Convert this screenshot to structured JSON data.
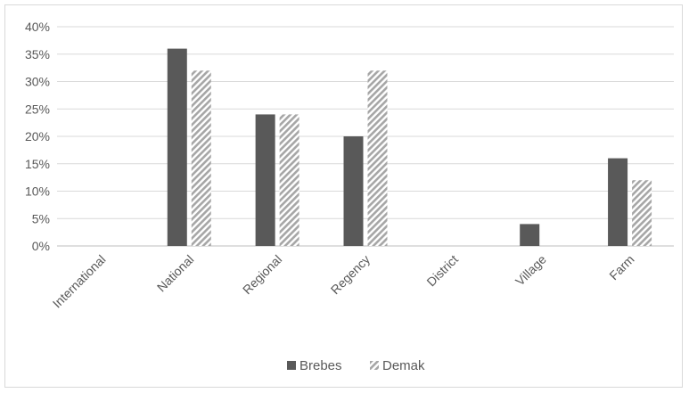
{
  "chart_data": {
    "type": "bar",
    "categories": [
      "International",
      "National",
      "Regional",
      "Regency",
      "District",
      "Village",
      "Farm"
    ],
    "series": [
      {
        "name": "Brebes",
        "values": [
          0,
          36,
          24,
          20,
          0,
          4,
          16
        ],
        "color": "#595959",
        "pattern": "solid"
      },
      {
        "name": "Demak",
        "values": [
          0,
          32,
          24,
          32,
          0,
          0,
          12
        ],
        "color": "#a6a6a6",
        "pattern": "diagonal-stripes"
      }
    ],
    "y_ticks": [
      "0%",
      "5%",
      "10%",
      "15%",
      "20%",
      "25%",
      "30%",
      "35%",
      "40%"
    ],
    "ylim": [
      0,
      40
    ],
    "y_unit": "%",
    "grid": true,
    "legend_position": "bottom",
    "title": "",
    "xlabel": "",
    "ylabel": ""
  }
}
